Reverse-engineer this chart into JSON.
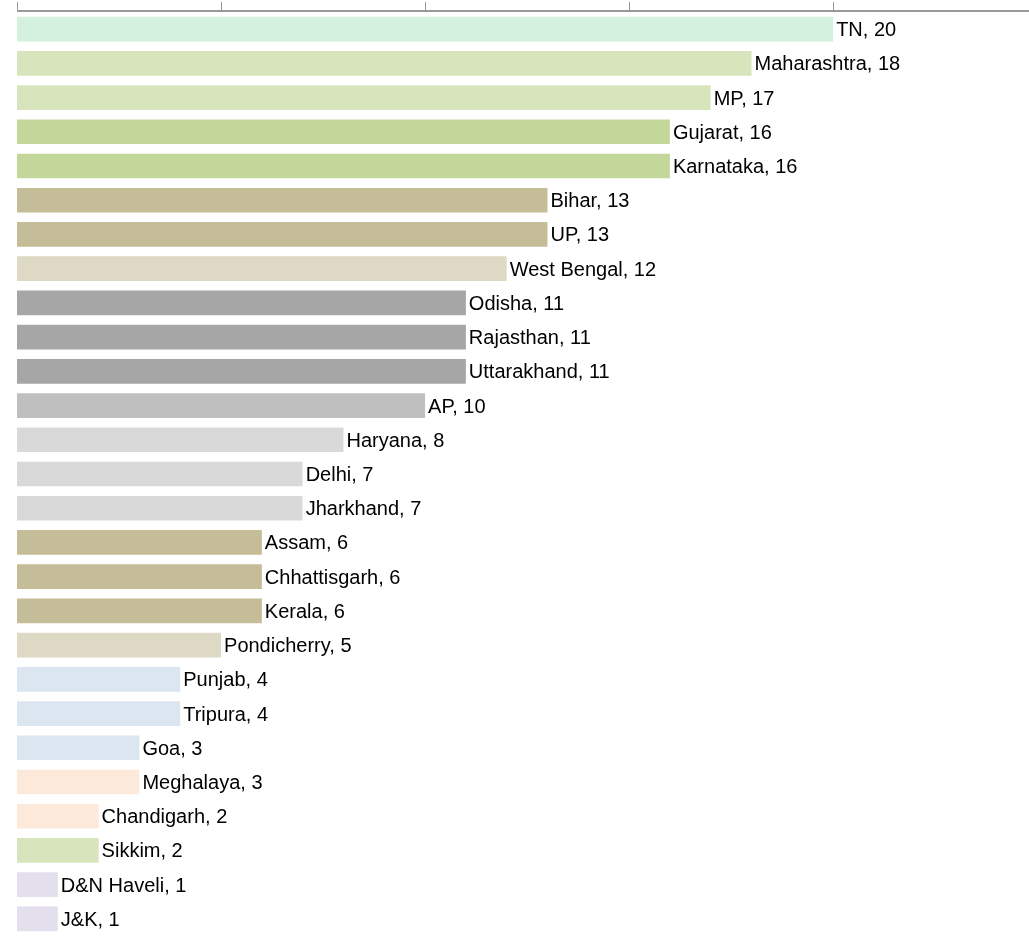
{
  "chart_data": {
    "type": "bar",
    "orientation": "horizontal",
    "categories": [
      null,
      null,
      null,
      null,
      null,
      null,
      null,
      null,
      null,
      null,
      null,
      null,
      null,
      null,
      null,
      null,
      null,
      null,
      null,
      null,
      null,
      null,
      null,
      null,
      null,
      null,
      null
    ],
    "values": [
      20,
      18,
      17,
      16,
      16,
      13,
      13,
      12,
      11,
      11,
      11,
      10,
      8,
      7,
      7,
      6,
      6,
      6,
      5,
      4,
      4,
      3,
      3,
      2,
      2,
      1,
      1
    ],
    "value_labels": [
      "TN, 20",
      "Maharashtra, 18",
      "MP, 17",
      "Gujarat, 16",
      "Karnataka, 16",
      "Bihar, 13",
      "UP, 13",
      "West Bengal, 12",
      "Odisha, 11",
      "Rajasthan, 11",
      "Uttarakhand, 11",
      "AP, 10",
      "Haryana, 8",
      "Delhi, 7",
      "Jharkhand, 7",
      "Assam, 6",
      "Chhattisgarh, 6",
      "Kerala, 6",
      "Pondicherry, 5",
      "Punjab, 4",
      "Tripura, 4",
      "Goa, 3",
      "Meghalaya, 3",
      "Chandigarh, 2",
      "Sikkim, 2",
      "D&N Haveli, 1",
      "J&K, 1"
    ],
    "colors": [
      "#d4f1de",
      "#d8e4bc",
      "#d8e4bc",
      "#c4d79b",
      "#c4d79b",
      "#c4bd97",
      "#c4bd97",
      "#ddd9c4",
      "#a6a6a6",
      "#a6a6a6",
      "#a6a6a6",
      "#bfbfbf",
      "#d9d9d9",
      "#d9d9d9",
      "#d9d9d9",
      "#c4bd97",
      "#c4bd97",
      "#c4bd97",
      "#ddd9c4",
      "#dce6f1",
      "#dce6f1",
      "#dce6f1",
      "#fde9d9",
      "#fde9d9",
      "#d8e4bc",
      "#e4dfec",
      "#e4dfec"
    ],
    "tick_labels": false
  }
}
